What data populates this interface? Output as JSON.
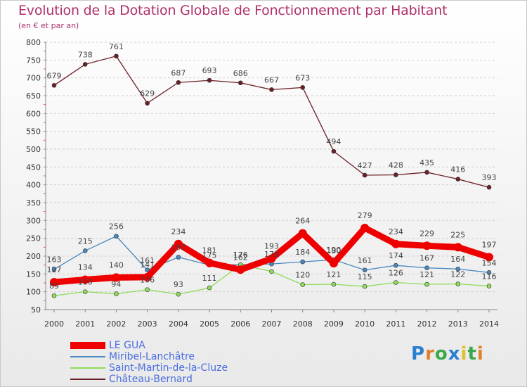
{
  "title": "Evolution de la Dotation Globale de Fonctionnement par Habitant",
  "subtitle": "(en € et par an)",
  "logo": "Proxiti",
  "chart_data": {
    "type": "line",
    "title": "Evolution de la Dotation Globale de Fonctionnement par Habitant",
    "subtitle": "(en € et par an)",
    "x": [
      "2000",
      "2001",
      "2002",
      "2003",
      "2004",
      "2005",
      "2006",
      "2007",
      "2008",
      "2009",
      "2010",
      "2011",
      "2012",
      "2013",
      "2014"
    ],
    "yticks": [
      50,
      100,
      150,
      200,
      250,
      300,
      350,
      400,
      450,
      500,
      550,
      600,
      650,
      700,
      750,
      800
    ],
    "ylim": [
      50,
      800
    ],
    "grid": "horizontal-dashed",
    "legend_position": "bottom-left",
    "series": [
      {
        "name": "Château-Bernard",
        "color": "#6b1f26",
        "values": [
          679,
          738,
          761,
          629,
          687,
          693,
          686,
          667,
          673,
          494,
          427,
          428,
          435,
          416,
          393
        ]
      },
      {
        "name": "Miribel-Lanchâtre",
        "color": "#4a88c0",
        "values": [
          163,
          215,
          256,
          161,
          197,
          175,
          176,
          178,
          184,
          190,
          161,
          174,
          167,
          164,
          154
        ]
      },
      {
        "name": "Saint-Martin-de-la-Cluze",
        "color": "#8fdc5a",
        "values": [
          89,
          100,
          94,
          106,
          93,
          111,
          176,
          157,
          120,
          121,
          115,
          126,
          121,
          122,
          116
        ]
      },
      {
        "name": "LE GUA",
        "color": "#ee0000",
        "values": [
          127,
          134,
          140,
          141,
          234,
          181,
          162,
          193,
          264,
          180,
          279,
          234,
          229,
          225,
          197
        ]
      }
    ],
    "labels": {
      "Château-Bernard": [
        "679",
        "738",
        "761",
        "629",
        "687",
        "693",
        "686",
        "667",
        "673",
        "494",
        "427",
        "428",
        "435",
        "416",
        "393"
      ],
      "Miribel-Lanchâtre": [
        "163",
        "215",
        "256",
        "161",
        "197",
        "175",
        "176",
        "178",
        "184",
        "190",
        "161",
        "174",
        "167",
        "164",
        "154"
      ],
      "Saint-Martin-de-la-Cluze": [
        "89",
        "100",
        "94",
        "106",
        "93",
        "111",
        "176",
        "",
        "120",
        "121",
        "115",
        "126",
        "121",
        "122",
        "116"
      ],
      "LE GUA": [
        "127",
        "134",
        "140",
        "141",
        "234",
        "181",
        "162",
        "193",
        "264",
        "180",
        "279",
        "234",
        "229",
        "225",
        "197"
      ]
    }
  },
  "legend": [
    {
      "name": "LE GUA",
      "color": "#ee0000",
      "thickness": 10
    },
    {
      "name": "Miribel-Lanchâtre",
      "color": "#4a88c0",
      "thickness": 2
    },
    {
      "name": "Saint-Martin-de-la-Cluze",
      "color": "#8fdc5a",
      "thickness": 2
    },
    {
      "name": "Château-Bernard",
      "color": "#6b1f26",
      "thickness": 2
    }
  ]
}
